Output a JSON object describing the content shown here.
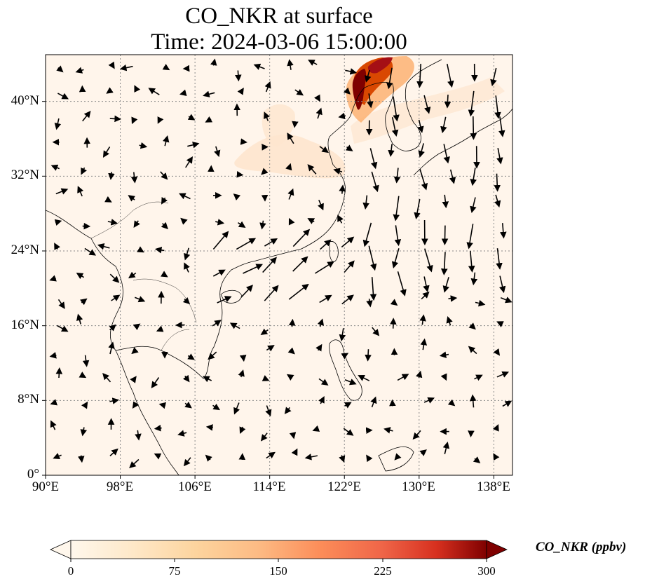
{
  "title": {
    "line1": "CO_NKR at surface",
    "line2": "Time: 2024-03-06 15:00:00"
  },
  "map": {
    "lon_range": [
      90,
      140
    ],
    "lat_range": [
      0,
      45
    ],
    "x_ticks": [
      "90°E",
      "98°E",
      "106°E",
      "114°E",
      "122°E",
      "130°E",
      "138°E"
    ],
    "y_ticks": [
      "0°",
      "8°N",
      "16°N",
      "24°N",
      "32°N",
      "40°N"
    ],
    "gridlines": true,
    "background_color": "#fff5eb",
    "plume_colors": [
      "#fdd9b0",
      "#fdae6b",
      "#f16913",
      "#d94801",
      "#a50f15",
      "#7f0000"
    ]
  },
  "colorbar": {
    "label": "CO_NKR (ppbv)",
    "ticks": [
      "0",
      "75",
      "150",
      "225",
      "300"
    ],
    "min": 0,
    "max": 300,
    "extend": "both",
    "colormap": "OrRd"
  }
}
